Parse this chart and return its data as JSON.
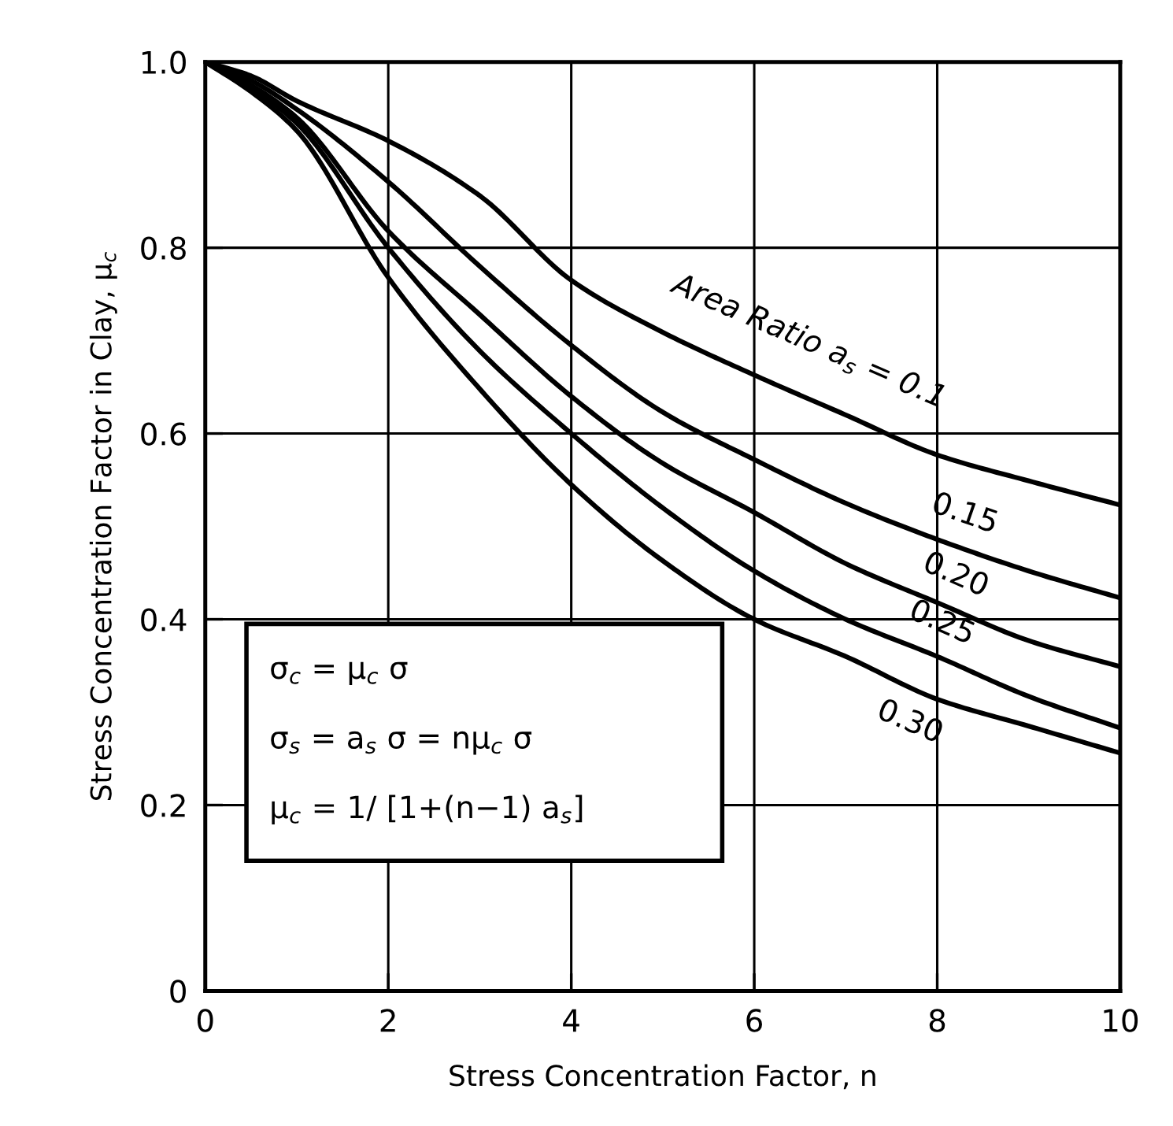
{
  "chart_data": {
    "type": "line",
    "xlabel": "Stress Concentration Factor, n",
    "ylabel": "Stress Concentration Factor in Clay, μ$_{c}$",
    "x": [
      0,
      0.5,
      1,
      2,
      3,
      4,
      5,
      6,
      7,
      8,
      9,
      10
    ],
    "series": [
      {
        "name": "Area Ratio a$_{s}$ = 0.1",
        "color": "#000000",
        "values": [
          1.0,
          0.985,
          0.958,
          0.915,
          0.856,
          0.765,
          0.709,
          0.663,
          0.62,
          0.577,
          0.549,
          0.523
        ]
      },
      {
        "name": "0.15",
        "color": "#000000",
        "values": [
          1.0,
          0.98,
          0.949,
          0.871,
          0.78,
          0.695,
          0.623,
          0.572,
          0.525,
          0.486,
          0.452,
          0.423
        ]
      },
      {
        "name": "0.20",
        "color": "#000000",
        "values": [
          1.0,
          0.975,
          0.94,
          0.818,
          0.728,
          0.64,
          0.568,
          0.515,
          0.46,
          0.418,
          0.377,
          0.349
        ]
      },
      {
        "name": "0.25",
        "color": "#000000",
        "values": [
          1.0,
          0.972,
          0.934,
          0.8,
          0.689,
          0.6,
          0.52,
          0.452,
          0.4,
          0.36,
          0.317,
          0.283
        ]
      },
      {
        "name": "0.30",
        "color": "#000000",
        "values": [
          1.0,
          0.968,
          0.926,
          0.768,
          0.648,
          0.545,
          0.463,
          0.4,
          0.36,
          0.314,
          0.285,
          0.256
        ]
      }
    ],
    "annotations": [
      "σ$_{c}$ = μ$_{c}$ σ",
      "σ$_{s}$ = a$_{s}$ σ = nμ$_{c}$ σ",
      "μ$_{c}$ = 1/ [1+(n−1) a$_{s}$]"
    ],
    "xlim": [
      0,
      10
    ],
    "ylim": [
      0,
      1
    ],
    "xticks": [
      0,
      2,
      4,
      6,
      8,
      10
    ],
    "yticks": [
      0,
      0.2,
      0.4,
      0.6,
      0.8,
      {
        "value": 1,
        "label": "1.0"
      }
    ],
    "grid": true,
    "legend": false,
    "marker": "none",
    "line_style": "solid"
  }
}
